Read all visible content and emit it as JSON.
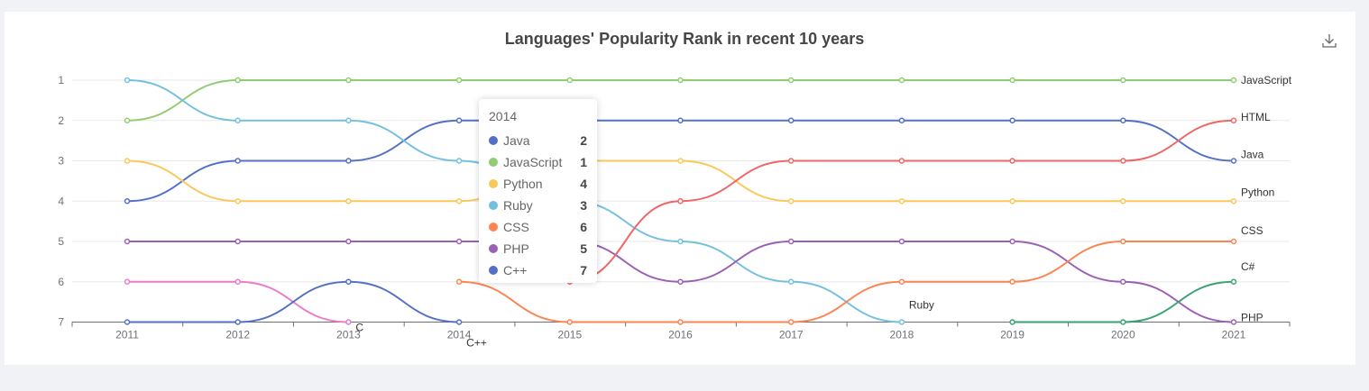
{
  "chart_data": {
    "type": "line",
    "title": "Languages' Popularity Rank in recent 10 years",
    "x": [
      "2011",
      "2012",
      "2013",
      "2014",
      "2015",
      "2016",
      "2017",
      "2018",
      "2019",
      "2020",
      "2021"
    ],
    "ylim": [
      1,
      7
    ],
    "y_inverse": true,
    "yticks": [
      "1",
      "2",
      "3",
      "4",
      "5",
      "6",
      "7"
    ],
    "grid": true,
    "smooth": true,
    "series": [
      {
        "name": "JavaScript",
        "color": "#91cc75",
        "values": [
          2,
          1,
          1,
          1,
          1,
          1,
          1,
          1,
          1,
          1,
          1
        ]
      },
      {
        "name": "Java",
        "color": "#5470c6",
        "values": [
          4,
          3,
          3,
          2,
          2,
          2,
          2,
          2,
          2,
          2,
          3
        ]
      },
      {
        "name": "Ruby",
        "color": "#73c0de",
        "values": [
          1,
          2,
          2,
          3,
          4,
          5,
          6,
          7,
          null,
          null,
          null
        ]
      },
      {
        "name": "Python",
        "color": "#fac858",
        "values": [
          3,
          4,
          4,
          4,
          3,
          3,
          4,
          4,
          4,
          4,
          4
        ]
      },
      {
        "name": "PHP",
        "color": "#9a60b4",
        "values": [
          5,
          5,
          5,
          5,
          5,
          6,
          5,
          5,
          5,
          6,
          7
        ]
      },
      {
        "name": "C",
        "color": "#ea7ccc",
        "values": [
          6,
          6,
          7,
          null,
          null,
          null,
          null,
          null,
          null,
          null,
          null
        ]
      },
      {
        "name": "C++",
        "color": "#5470c6",
        "values": [
          7,
          7,
          6,
          7,
          null,
          null,
          null,
          null,
          null,
          null,
          null
        ]
      },
      {
        "name": "CSS",
        "color": "#fc8452",
        "values": [
          null,
          null,
          null,
          6,
          7,
          7,
          7,
          6,
          6,
          5,
          5
        ]
      },
      {
        "name": "HTML",
        "color": "#ee6666",
        "values": [
          null,
          null,
          null,
          null,
          6,
          4,
          3,
          3,
          3,
          3,
          2
        ]
      },
      {
        "name": "C#",
        "color": "#3ba272",
        "values": [
          null,
          null,
          null,
          null,
          null,
          null,
          null,
          null,
          7,
          7,
          6
        ]
      }
    ],
    "end_labels": [
      {
        "name": "JavaScript",
        "text": "JavaScript"
      },
      {
        "name": "HTML",
        "text": "HTML"
      },
      {
        "name": "Java",
        "text": "Java"
      },
      {
        "name": "Python",
        "text": "Python"
      },
      {
        "name": "CSS",
        "text": "CSS"
      },
      {
        "name": "C#",
        "text": "C#"
      },
      {
        "name": "Ruby",
        "text": "Ruby"
      },
      {
        "name": "C",
        "text": "C"
      },
      {
        "name": "C++",
        "text": "C++"
      },
      {
        "name": "PHP",
        "text": "PHP"
      }
    ],
    "tooltip": {
      "title": "2014",
      "rows": [
        {
          "name": "Java",
          "value": "2",
          "color": "#5470c6"
        },
        {
          "name": "JavaScript",
          "value": "1",
          "color": "#91cc75"
        },
        {
          "name": "Python",
          "value": "4",
          "color": "#fac858"
        },
        {
          "name": "Ruby",
          "value": "3",
          "color": "#73c0de"
        },
        {
          "name": "CSS",
          "value": "6",
          "color": "#fc8452"
        },
        {
          "name": "PHP",
          "value": "5",
          "color": "#9a60b4"
        },
        {
          "name": "C++",
          "value": "7",
          "color": "#5470c6"
        }
      ]
    }
  },
  "toolbar": {
    "download_icon": "download-icon"
  }
}
